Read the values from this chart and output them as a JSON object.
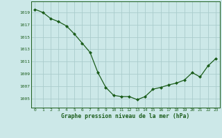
{
  "x": [
    0,
    1,
    2,
    3,
    4,
    5,
    6,
    7,
    8,
    9,
    10,
    11,
    12,
    13,
    14,
    15,
    16,
    17,
    18,
    19,
    20,
    21,
    22,
    23
  ],
  "y": [
    1019.5,
    1019.0,
    1018.0,
    1017.5,
    1016.8,
    1015.5,
    1014.0,
    1012.5,
    1009.2,
    1006.8,
    1005.5,
    1005.3,
    1005.3,
    1004.8,
    1005.3,
    1006.5,
    1006.8,
    1007.2,
    1007.5,
    1008.0,
    1009.2,
    1008.5,
    1010.3,
    1011.5
  ],
  "line_color": "#1a5c1a",
  "marker": "D",
  "marker_size": 2.0,
  "bg_color": "#cce8e8",
  "grid_color": "#aacccc",
  "xlabel": "Graphe pression niveau de la mer (hPa)",
  "xlabel_color": "#1a5c1a",
  "tick_color": "#1a5c1a",
  "ylim": [
    1003.5,
    1020.8
  ],
  "yticks": [
    1005,
    1007,
    1009,
    1011,
    1013,
    1015,
    1017,
    1019
  ],
  "ytick_labels": [
    "1005",
    "1007",
    "1009",
    "1011",
    "1013",
    "1015",
    "1017",
    "1019"
  ],
  "xticks": [
    0,
    1,
    2,
    3,
    4,
    5,
    6,
    7,
    8,
    9,
    10,
    11,
    12,
    13,
    14,
    15,
    16,
    17,
    18,
    19,
    20,
    21,
    22,
    23
  ],
  "xlim": [
    -0.5,
    23.5
  ]
}
